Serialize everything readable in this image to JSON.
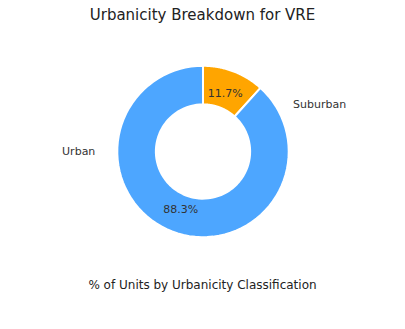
{
  "chart_data": {
    "type": "pie",
    "title": "Urbanicity Breakdown for VRE",
    "xlabel": "% of Units by Urbanicity Classification",
    "categories": [
      "Suburban",
      "Urban"
    ],
    "values": [
      11.7,
      88.3
    ],
    "value_labels": [
      "11.7%",
      "88.3%"
    ],
    "colors": [
      "#FFA500",
      "#4DA6FF"
    ],
    "data_labels": true
  }
}
